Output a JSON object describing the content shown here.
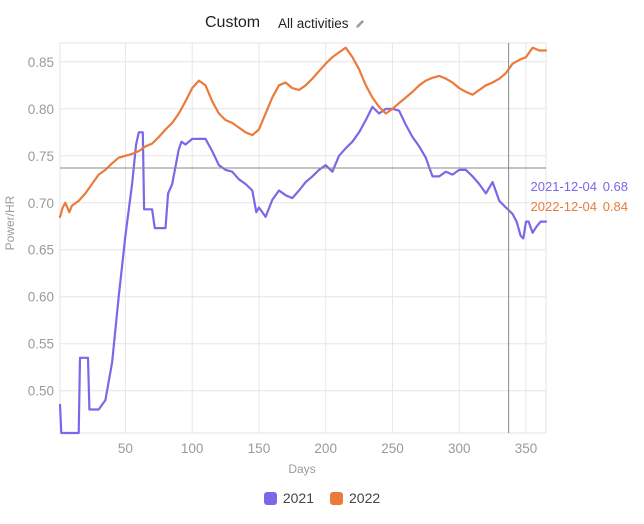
{
  "header": {
    "title": "Custom",
    "activities_label": "All activities"
  },
  "colors": {
    "series_2021": "#7B68E8",
    "series_2022": "#EC7A3A",
    "grid": "#e6e6e6",
    "axis_text": "#9a9a9a",
    "crosshair": "#888888"
  },
  "tooltip": {
    "rows": [
      {
        "date": "2021-12-04",
        "value": "0.68"
      },
      {
        "date": "2022-12-04",
        "value": "0.84"
      }
    ]
  },
  "chart_data": {
    "type": "line",
    "xlabel": "Days",
    "ylabel": "Power/HR",
    "xlim": [
      1,
      365
    ],
    "ylim": [
      0.455,
      0.87
    ],
    "x_ticks": [
      50,
      100,
      150,
      200,
      250,
      300,
      350
    ],
    "y_ticks": [
      0.5,
      0.55,
      0.6,
      0.65,
      0.7,
      0.75,
      0.8,
      0.85
    ],
    "grid": true,
    "legend_position": "bottom",
    "reference_line_y": 0.737,
    "crosshair_x": 337,
    "series": [
      {
        "name": "2021",
        "x": [
          1,
          2,
          15,
          16,
          22,
          23,
          30,
          35,
          40,
          45,
          50,
          55,
          58,
          60,
          63,
          64,
          70,
          72,
          80,
          82,
          85,
          90,
          92,
          95,
          100,
          105,
          110,
          115,
          120,
          125,
          130,
          135,
          140,
          145,
          148,
          150,
          155,
          160,
          165,
          170,
          175,
          180,
          185,
          190,
          195,
          200,
          205,
          210,
          215,
          220,
          225,
          230,
          235,
          240,
          245,
          250,
          255,
          260,
          265,
          270,
          275,
          280,
          285,
          290,
          295,
          300,
          305,
          310,
          315,
          320,
          325,
          330,
          335,
          340,
          343,
          346,
          348,
          350,
          352,
          355,
          358,
          361,
          365
        ],
        "values": [
          0.485,
          0.455,
          0.455,
          0.535,
          0.535,
          0.48,
          0.48,
          0.49,
          0.53,
          0.6,
          0.665,
          0.72,
          0.762,
          0.775,
          0.775,
          0.693,
          0.693,
          0.673,
          0.673,
          0.71,
          0.72,
          0.757,
          0.765,
          0.762,
          0.768,
          0.768,
          0.768,
          0.755,
          0.74,
          0.735,
          0.733,
          0.725,
          0.72,
          0.713,
          0.69,
          0.695,
          0.685,
          0.703,
          0.713,
          0.708,
          0.705,
          0.713,
          0.722,
          0.728,
          0.735,
          0.74,
          0.733,
          0.75,
          0.758,
          0.765,
          0.775,
          0.788,
          0.802,
          0.795,
          0.8,
          0.8,
          0.798,
          0.783,
          0.77,
          0.76,
          0.748,
          0.728,
          0.728,
          0.733,
          0.73,
          0.735,
          0.735,
          0.728,
          0.72,
          0.71,
          0.722,
          0.702,
          0.695,
          0.688,
          0.68,
          0.665,
          0.662,
          0.68,
          0.68,
          0.668,
          0.675,
          0.68,
          0.68
        ]
      },
      {
        "name": "2022",
        "x": [
          1,
          3,
          5,
          8,
          10,
          15,
          20,
          25,
          30,
          35,
          40,
          45,
          50,
          55,
          60,
          65,
          70,
          75,
          80,
          85,
          90,
          95,
          100,
          105,
          110,
          115,
          120,
          125,
          130,
          135,
          140,
          145,
          150,
          155,
          160,
          165,
          170,
          175,
          180,
          185,
          190,
          195,
          200,
          205,
          210,
          215,
          220,
          225,
          230,
          235,
          240,
          245,
          250,
          255,
          260,
          265,
          270,
          275,
          280,
          285,
          290,
          295,
          300,
          305,
          310,
          315,
          320,
          325,
          330,
          335,
          340,
          345,
          350,
          355,
          360,
          365
        ],
        "values": [
          0.685,
          0.695,
          0.7,
          0.69,
          0.697,
          0.702,
          0.71,
          0.72,
          0.73,
          0.735,
          0.742,
          0.748,
          0.75,
          0.752,
          0.755,
          0.76,
          0.763,
          0.77,
          0.778,
          0.785,
          0.795,
          0.808,
          0.822,
          0.83,
          0.825,
          0.808,
          0.795,
          0.788,
          0.785,
          0.78,
          0.775,
          0.772,
          0.778,
          0.795,
          0.812,
          0.825,
          0.828,
          0.822,
          0.82,
          0.825,
          0.832,
          0.84,
          0.848,
          0.855,
          0.86,
          0.865,
          0.855,
          0.842,
          0.825,
          0.812,
          0.802,
          0.795,
          0.8,
          0.806,
          0.812,
          0.818,
          0.825,
          0.83,
          0.833,
          0.835,
          0.832,
          0.828,
          0.822,
          0.818,
          0.815,
          0.82,
          0.825,
          0.828,
          0.832,
          0.838,
          0.848,
          0.852,
          0.855,
          0.865,
          0.862,
          0.862
        ]
      }
    ]
  }
}
